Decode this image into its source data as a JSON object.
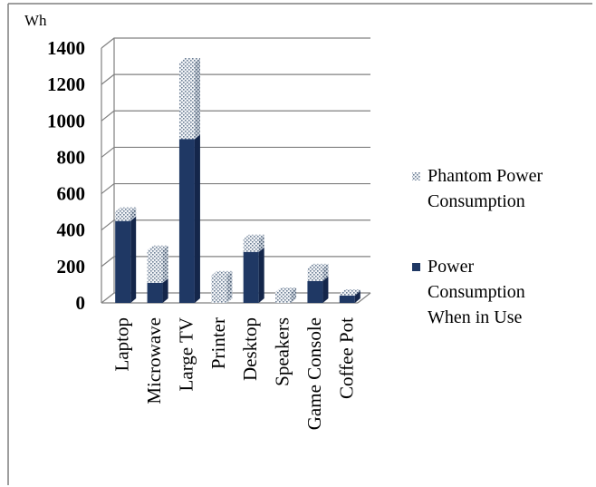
{
  "chart_data": {
    "type": "bar",
    "stacked": true,
    "three_d": true,
    "unit_label": "Wh",
    "categories": [
      "Laptop",
      "Microwave",
      "Large TV",
      "Printer",
      "Desktop",
      "Speakers",
      "Game Console",
      "Coffee Pot"
    ],
    "series": [
      {
        "name": "Power Consumption When in Use",
        "values": [
          450,
          110,
          900,
          0,
          280,
          0,
          120,
          40
        ],
        "color": "#1f3864"
      },
      {
        "name": "Phantom Power Consumption",
        "values": [
          50,
          180,
          420,
          150,
          70,
          60,
          70,
          10
        ],
        "color": "#dde3ea",
        "pattern": "dotted"
      }
    ],
    "ylim": [
      0,
      1400
    ],
    "yticks": [
      "0",
      "200",
      "400",
      "600",
      "800",
      "1000",
      "1200",
      "1400"
    ],
    "grid": true,
    "legend_position": "right",
    "legend": [
      {
        "lines": [
          "Phantom Power",
          "Consumption"
        ],
        "series": 1
      },
      {
        "lines": [
          "Power",
          "Consumption",
          "When in Use"
        ],
        "series": 0
      }
    ]
  }
}
